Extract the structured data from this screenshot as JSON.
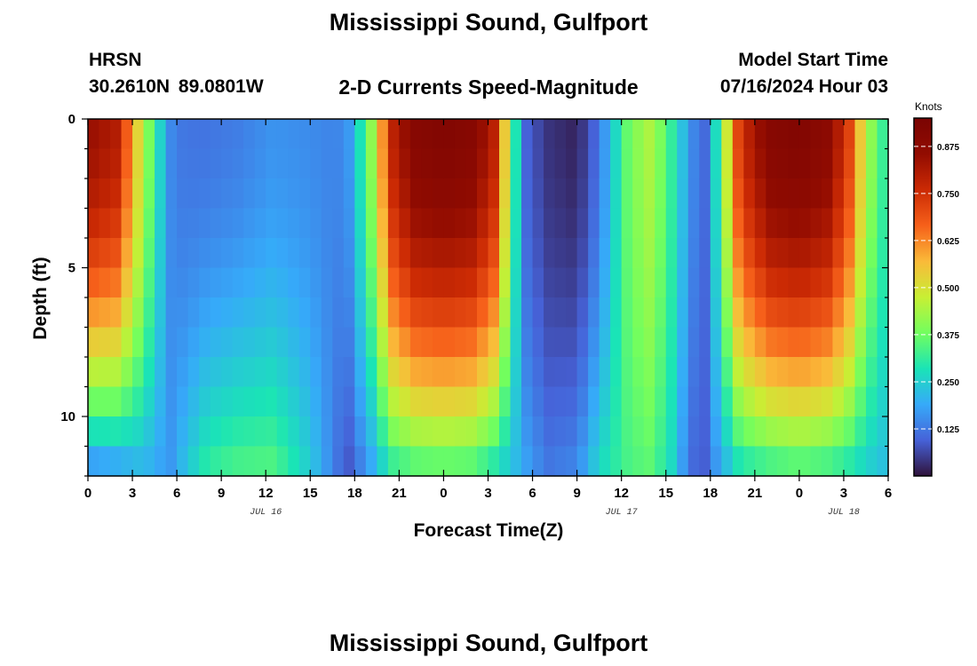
{
  "header": {
    "title": "Mississippi Sound, Gulfport",
    "station": "HRSN",
    "coords": "30.2610N  89.0801W",
    "subtitle": "2-D Currents Speed-Magnitude",
    "model_label": "Model Start Time",
    "model_time": "07/16/2024 Hour 03"
  },
  "footer": {
    "title": "Mississippi Sound, Gulfport"
  },
  "chart_data": {
    "type": "heatmap",
    "title": "2-D Currents Speed-Magnitude",
    "xlabel": "Forecast Time(Z)",
    "ylabel": "Depth (ft)",
    "x_range_hours": [
      0,
      54
    ],
    "x_tick_labels": [
      "0",
      "3",
      "6",
      "9",
      "12",
      "15",
      "18",
      "21",
      "0",
      "3",
      "6",
      "9",
      "12",
      "15",
      "18",
      "21",
      "0",
      "3",
      "6"
    ],
    "day_labels": [
      {
        "text": "JUL 16",
        "hour": 12
      },
      {
        "text": "JUL 17",
        "hour": 36
      },
      {
        "text": "JUL 18",
        "hour": 51
      }
    ],
    "y_range_ft": [
      0,
      12
    ],
    "y_tick_labels": [
      "0",
      "5",
      "10"
    ],
    "y_tick_values": [
      0,
      5,
      10
    ],
    "depth_layers_ft": [
      0.5,
      1.5,
      2.5,
      3.5,
      4.5,
      5.5,
      6.5,
      7.5,
      8.5,
      9.5,
      10.5,
      11.5
    ],
    "colorbar": {
      "title": "Knots",
      "min": 0,
      "max": 0.95,
      "tick_labels": [
        "0.875",
        "0.750",
        "0.625",
        "0.500",
        "0.375",
        "0.250",
        "0.125"
      ],
      "tick_values": [
        0.875,
        0.75,
        0.625,
        0.5,
        0.375,
        0.25,
        0.125
      ],
      "colormap": "turbo"
    },
    "speed_profile": [
      {
        "hour": 0,
        "surface": 0.85,
        "bottom": 0.18
      },
      {
        "hour": 2,
        "surface": 0.8,
        "bottom": 0.2
      },
      {
        "hour": 3.5,
        "surface": 0.5,
        "bottom": 0.22
      },
      {
        "hour": 4.5,
        "surface": 0.32,
        "bottom": 0.2
      },
      {
        "hour": 5.5,
        "surface": 0.15,
        "bottom": 0.16
      },
      {
        "hour": 6.5,
        "surface": 0.12,
        "bottom": 0.22
      },
      {
        "hour": 8,
        "surface": 0.12,
        "bottom": 0.3
      },
      {
        "hour": 10,
        "surface": 0.13,
        "bottom": 0.33
      },
      {
        "hour": 12.5,
        "surface": 0.16,
        "bottom": 0.34
      },
      {
        "hour": 15,
        "surface": 0.15,
        "bottom": 0.24
      },
      {
        "hour": 16.5,
        "surface": 0.14,
        "bottom": 0.14
      },
      {
        "hour": 17.5,
        "surface": 0.15,
        "bottom": 0.08
      },
      {
        "hour": 19,
        "surface": 0.38,
        "bottom": 0.18
      },
      {
        "hour": 20.5,
        "surface": 0.78,
        "bottom": 0.32
      },
      {
        "hour": 22,
        "surface": 0.9,
        "bottom": 0.36
      },
      {
        "hour": 24,
        "surface": 0.92,
        "bottom": 0.37
      },
      {
        "hour": 26,
        "surface": 0.9,
        "bottom": 0.36
      },
      {
        "hour": 27.5,
        "surface": 0.78,
        "bottom": 0.3
      },
      {
        "hour": 28.5,
        "surface": 0.4,
        "bottom": 0.24
      },
      {
        "hour": 29.5,
        "surface": 0.1,
        "bottom": 0.18
      },
      {
        "hour": 31,
        "surface": 0.04,
        "bottom": 0.12
      },
      {
        "hour": 33,
        "surface": 0.02,
        "bottom": 0.14
      },
      {
        "hour": 34.5,
        "surface": 0.12,
        "bottom": 0.26
      },
      {
        "hour": 36.5,
        "surface": 0.38,
        "bottom": 0.34
      },
      {
        "hour": 38,
        "surface": 0.45,
        "bottom": 0.36
      },
      {
        "hour": 39.5,
        "surface": 0.3,
        "bottom": 0.26
      },
      {
        "hour": 40.5,
        "surface": 0.18,
        "bottom": 0.12
      },
      {
        "hour": 41.5,
        "surface": 0.08,
        "bottom": 0.08
      },
      {
        "hour": 42.5,
        "surface": 0.3,
        "bottom": 0.18
      },
      {
        "hour": 44,
        "surface": 0.75,
        "bottom": 0.3
      },
      {
        "hour": 46,
        "surface": 0.9,
        "bottom": 0.34
      },
      {
        "hour": 48,
        "surface": 0.92,
        "bottom": 0.36
      },
      {
        "hour": 50,
        "surface": 0.88,
        "bottom": 0.34
      },
      {
        "hour": 51.5,
        "surface": 0.7,
        "bottom": 0.3
      },
      {
        "hour": 52.5,
        "surface": 0.45,
        "bottom": 0.26
      },
      {
        "hour": 54,
        "surface": 0.28,
        "bottom": 0.22
      }
    ]
  }
}
